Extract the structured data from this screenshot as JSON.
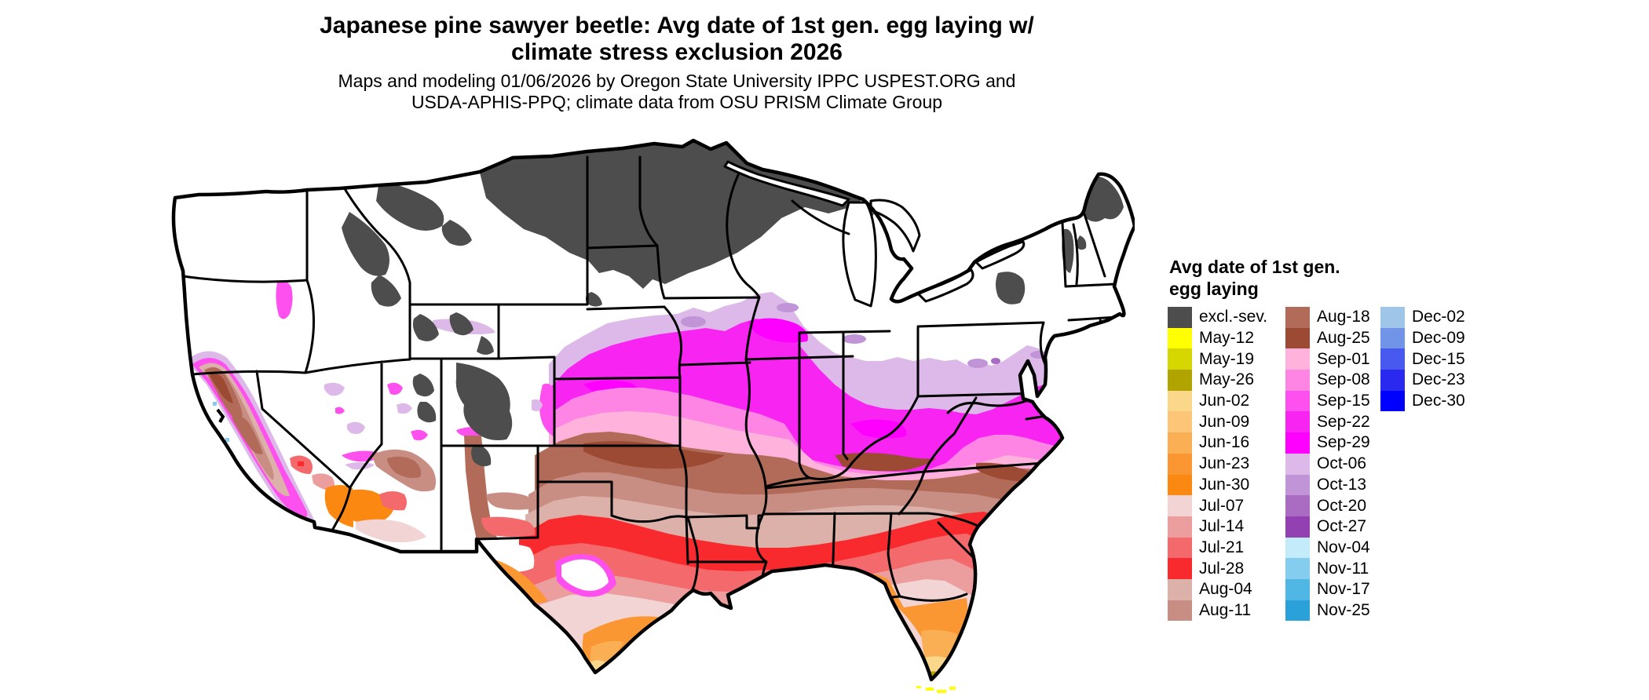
{
  "header": {
    "title_line1": "Japanese pine sawyer beetle: Avg date of 1st gen. egg laying w/",
    "title_line2": "climate stress exclusion 2026",
    "subtitle_line1": "Maps and modeling 01/06/2026 by Oregon State University IPPC USPEST.ORG and",
    "subtitle_line2": "USDA-APHIS-PPQ; climate data from OSU PRISM Climate Group"
  },
  "map": {
    "region": "Contiguous United States",
    "kind": "raster map of average date of first generation egg laying, colored by week",
    "excluded_class_label": "excl.-sev."
  },
  "legend": {
    "title": "Avg date of 1st gen. egg laying",
    "columns": [
      [
        {
          "label": "excl.-sev.",
          "color": "#4d4d4d"
        },
        {
          "label": "May-12",
          "color": "#ffff00"
        },
        {
          "label": "May-19",
          "color": "#d6d600"
        },
        {
          "label": "May-26",
          "color": "#b1a400"
        },
        {
          "label": "Jun-02",
          "color": "#fbd78b"
        },
        {
          "label": "Jun-09",
          "color": "#fcc577"
        },
        {
          "label": "Jun-16",
          "color": "#fbaf55"
        },
        {
          "label": "Jun-23",
          "color": "#fb9733"
        },
        {
          "label": "Jun-30",
          "color": "#fb8811"
        },
        {
          "label": "Jul-07",
          "color": "#f3d4d4"
        },
        {
          "label": "Jul-14",
          "color": "#ec9e9e"
        },
        {
          "label": "Jul-21",
          "color": "#f4696c"
        },
        {
          "label": "Jul-28",
          "color": "#f92a2e"
        },
        {
          "label": "Aug-04",
          "color": "#dcb1a9"
        },
        {
          "label": "Aug-11",
          "color": "#c98e83"
        }
      ],
      [
        {
          "label": "Aug-18",
          "color": "#b26b58"
        },
        {
          "label": "Aug-25",
          "color": "#9c4a33"
        },
        {
          "label": "Sep-01",
          "color": "#ffb3dc"
        },
        {
          "label": "Sep-08",
          "color": "#ff85e4"
        },
        {
          "label": "Sep-15",
          "color": "#fe50ef"
        },
        {
          "label": "Sep-22",
          "color": "#f824f2"
        },
        {
          "label": "Sep-29",
          "color": "#fd00ff"
        },
        {
          "label": "Oct-06",
          "color": "#dcb9e8"
        },
        {
          "label": "Oct-13",
          "color": "#c094d6"
        },
        {
          "label": "Oct-20",
          "color": "#aa6cc3"
        },
        {
          "label": "Oct-27",
          "color": "#9340b2"
        },
        {
          "label": "Nov-04",
          "color": "#c3ebfa"
        },
        {
          "label": "Nov-11",
          "color": "#84cdee"
        },
        {
          "label": "Nov-17",
          "color": "#50b6e4"
        },
        {
          "label": "Nov-25",
          "color": "#2aa2d9"
        }
      ],
      [
        {
          "label": "Dec-02",
          "color": "#9fc5e8"
        },
        {
          "label": "Dec-09",
          "color": "#7193e8"
        },
        {
          "label": "Dec-15",
          "color": "#4759ee"
        },
        {
          "label": "Dec-23",
          "color": "#2929f0"
        },
        {
          "label": "Dec-30",
          "color": "#0000fe"
        }
      ]
    ]
  }
}
